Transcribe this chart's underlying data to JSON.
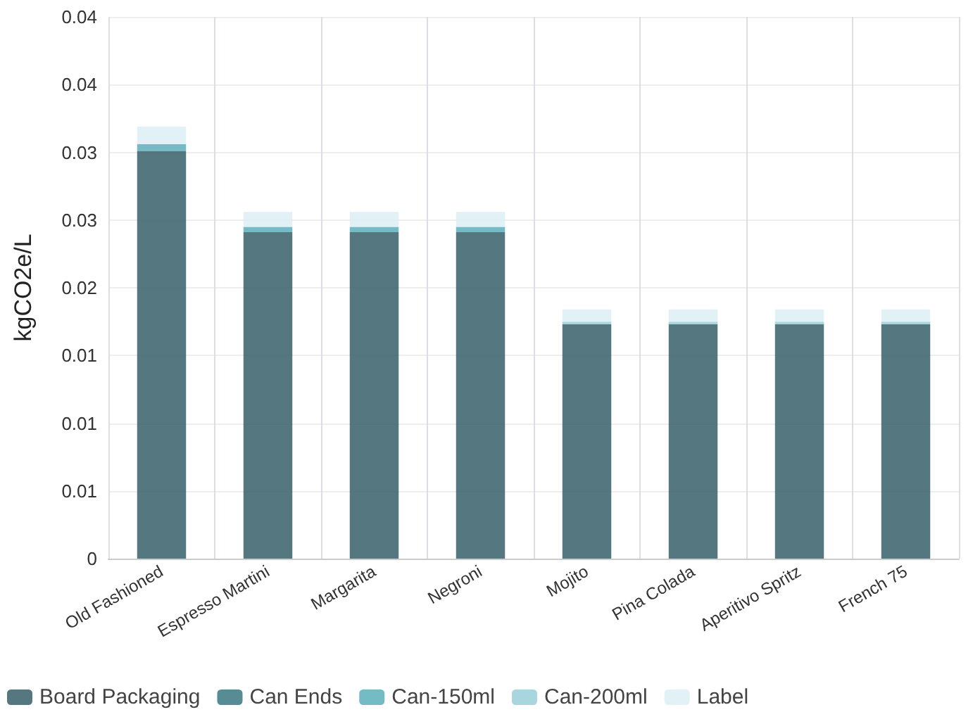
{
  "chart_data": {
    "type": "bar",
    "stacked": true,
    "ylabel": "kgCO2e/L",
    "categories": [
      "Old Fashioned",
      "Espresso Martini",
      "Margarita",
      "Negroni",
      "Mojito",
      "Pina Colada",
      "Aperitivo Spritz",
      "French 75"
    ],
    "series": [
      {
        "name": "Board Packaging",
        "color": "#2a5560",
        "values": [
          0.0301,
          0.0241,
          0.0241,
          0.0241,
          0.0173,
          0.0173,
          0.0173,
          0.0173
        ]
      },
      {
        "name": "Can Ends",
        "color": "#2e6f7a",
        "values": [
          0,
          0,
          0,
          0,
          0,
          0,
          0,
          0
        ]
      },
      {
        "name": "Can-150ml",
        "color": "#53aab8",
        "values": [
          0.0005,
          0.0004,
          0.0004,
          0.0004,
          0,
          0,
          0,
          0
        ]
      },
      {
        "name": "Can-200ml",
        "color": "#93cbd6",
        "values": [
          0,
          0,
          0,
          0,
          0.0002,
          0.0002,
          0.0002,
          0.0002
        ]
      },
      {
        "name": "Label",
        "color": "#dbedf2",
        "values": [
          0.0013,
          0.0011,
          0.0011,
          0.0011,
          0.0009,
          0.0009,
          0.0009,
          0.0009
        ]
      }
    ],
    "ylim": [
      0,
      0.04
    ],
    "yticks": [
      0,
      {
        "value": 0.005,
        "label": "0.01"
      },
      {
        "value": 0.01,
        "label": "0.01"
      },
      {
        "value": 0.015,
        "label": "0.01"
      },
      {
        "value": 0.02,
        "label": "0.02"
      },
      {
        "value": 0.025,
        "label": "0.03"
      },
      {
        "value": 0.03,
        "label": "0.03"
      },
      {
        "value": 0.035,
        "label": "0.04"
      },
      {
        "value": 0.04,
        "label": "0.04"
      }
    ],
    "grid": true,
    "legend": "bottom left"
  }
}
